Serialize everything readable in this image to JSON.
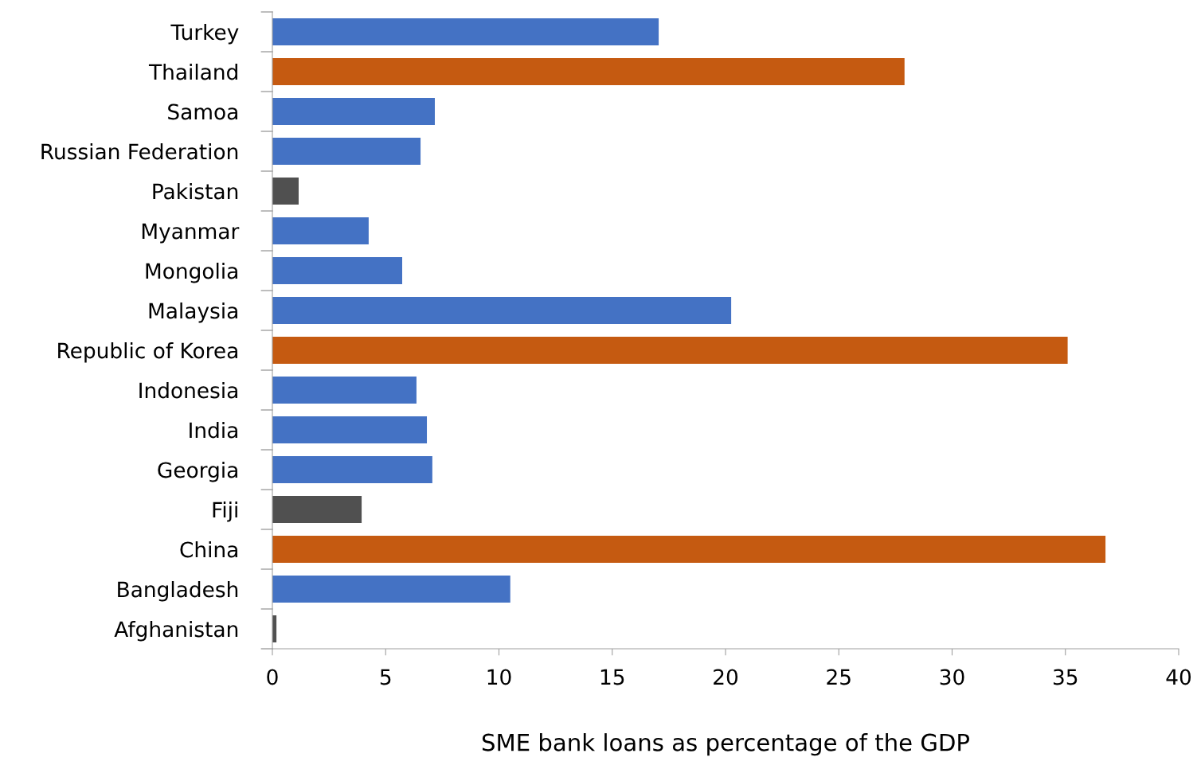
{
  "chart_data": {
    "type": "bar",
    "orientation": "horizontal",
    "xlabel": "SME bank loans as percentage of the GDP",
    "categories": [
      "Turkey",
      "Thailand",
      "Samoa",
      "Russian Federation",
      "Pakistan",
      "Myanmar",
      "Mongolia",
      "Malaysia",
      "Republic of Korea",
      "Indonesia",
      "India",
      "Georgia",
      "Fiji",
      "China",
      "Bangladesh",
      "Afghanistan"
    ],
    "values": [
      17.05,
      27.9,
      7.17,
      6.54,
      1.16,
      4.25,
      5.73,
      20.25,
      35.1,
      6.36,
      6.82,
      7.06,
      3.94,
      36.77,
      10.5,
      0.18
    ],
    "colors": [
      "#4472c4",
      "#c55a11",
      "#4472c4",
      "#4472c4",
      "#505050",
      "#4472c4",
      "#4472c4",
      "#4472c4",
      "#c55a11",
      "#4472c4",
      "#4472c4",
      "#4472c4",
      "#505050",
      "#c55a11",
      "#4472c4",
      "#505050"
    ],
    "xlim": [
      0,
      40
    ],
    "xticks": [
      0,
      5,
      10,
      15,
      20,
      25,
      30,
      35,
      40
    ],
    "grid": false,
    "legend": false
  }
}
